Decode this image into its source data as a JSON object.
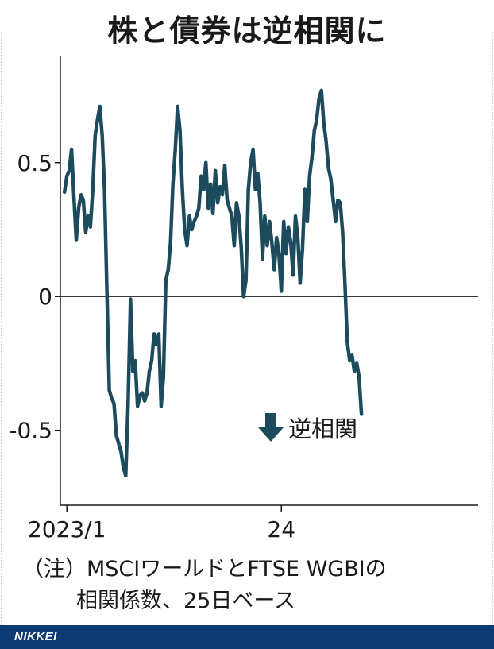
{
  "title": "株と債券は逆相関に",
  "note_line1": "（注）MSCIワールドとFTSE WGBIの",
  "note_line2": "相関係数、25日ベース",
  "logo": "NIKKEI",
  "colors": {
    "line": "#1d4b5e",
    "footer": "#0d3a72",
    "axis": "#1a1a1a"
  },
  "chart_data": {
    "type": "line",
    "ylim": [
      -0.78,
      0.9
    ],
    "y_ticks": [
      {
        "value": 0.5,
        "label": "0.5"
      },
      {
        "value": 0,
        "label": "0"
      },
      {
        "value": -0.5,
        "label": "-0.5"
      }
    ],
    "x_ticks": [
      {
        "date": "2023-01-02",
        "label": "2023/1"
      },
      {
        "date": "2024-01-01",
        "label": "24"
      }
    ],
    "x_range": [
      "2022-12-22",
      "2024-11-30"
    ],
    "annotation": "逆相関",
    "series": [
      {
        "values": [
          [
            "2022-12-29",
            0.39
          ],
          [
            "2023-01-02",
            0.45
          ],
          [
            "2023-01-06",
            0.47
          ],
          [
            "2023-01-10",
            0.55
          ],
          [
            "2023-01-14",
            0.37
          ],
          [
            "2023-01-18",
            0.21
          ],
          [
            "2023-01-22",
            0.33
          ],
          [
            "2023-01-26",
            0.38
          ],
          [
            "2023-01-30",
            0.36
          ],
          [
            "2023-02-03",
            0.24
          ],
          [
            "2023-02-07",
            0.3
          ],
          [
            "2023-02-11",
            0.26
          ],
          [
            "2023-02-15",
            0.4
          ],
          [
            "2023-02-19",
            0.6
          ],
          [
            "2023-02-23",
            0.66
          ],
          [
            "2023-02-27",
            0.71
          ],
          [
            "2023-03-03",
            0.6
          ],
          [
            "2023-03-07",
            0.4
          ],
          [
            "2023-03-11",
            0.02
          ],
          [
            "2023-03-15",
            -0.35
          ],
          [
            "2023-03-19",
            -0.38
          ],
          [
            "2023-03-23",
            -0.4
          ],
          [
            "2023-03-27",
            -0.52
          ],
          [
            "2023-03-31",
            -0.55
          ],
          [
            "2023-04-04",
            -0.58
          ],
          [
            "2023-04-08",
            -0.64
          ],
          [
            "2023-04-12",
            -0.67
          ],
          [
            "2023-04-16",
            -0.4
          ],
          [
            "2023-04-20",
            -0.01
          ],
          [
            "2023-04-24",
            -0.28
          ],
          [
            "2023-04-28",
            -0.24
          ],
          [
            "2023-05-02",
            -0.41
          ],
          [
            "2023-05-06",
            -0.37
          ],
          [
            "2023-05-10",
            -0.36
          ],
          [
            "2023-05-14",
            -0.39
          ],
          [
            "2023-05-18",
            -0.36
          ],
          [
            "2023-05-22",
            -0.28
          ],
          [
            "2023-05-26",
            -0.24
          ],
          [
            "2023-05-30",
            -0.14
          ],
          [
            "2023-06-03",
            -0.18
          ],
          [
            "2023-06-07",
            -0.14
          ],
          [
            "2023-06-11",
            -0.41
          ],
          [
            "2023-06-15",
            -0.3
          ],
          [
            "2023-06-19",
            0.06
          ],
          [
            "2023-06-23",
            0.1
          ],
          [
            "2023-06-27",
            0.2
          ],
          [
            "2023-07-01",
            0.42
          ],
          [
            "2023-07-05",
            0.55
          ],
          [
            "2023-07-09",
            0.71
          ],
          [
            "2023-07-13",
            0.62
          ],
          [
            "2023-07-17",
            0.4
          ],
          [
            "2023-07-21",
            0.25
          ],
          [
            "2023-07-25",
            0.19
          ],
          [
            "2023-07-29",
            0.3
          ],
          [
            "2023-08-02",
            0.25
          ],
          [
            "2023-08-06",
            0.28
          ],
          [
            "2023-08-10",
            0.3
          ],
          [
            "2023-08-14",
            0.33
          ],
          [
            "2023-08-18",
            0.45
          ],
          [
            "2023-08-22",
            0.4
          ],
          [
            "2023-08-26",
            0.5
          ],
          [
            "2023-08-30",
            0.33
          ],
          [
            "2023-09-03",
            0.42
          ],
          [
            "2023-09-07",
            0.31
          ],
          [
            "2023-09-11",
            0.47
          ],
          [
            "2023-09-15",
            0.35
          ],
          [
            "2023-09-19",
            0.41
          ],
          [
            "2023-09-23",
            0.38
          ],
          [
            "2023-09-27",
            0.49
          ],
          [
            "2023-10-01",
            0.36
          ],
          [
            "2023-10-05",
            0.33
          ],
          [
            "2023-10-09",
            0.3
          ],
          [
            "2023-10-13",
            0.19
          ],
          [
            "2023-10-17",
            0.35
          ],
          [
            "2023-10-21",
            0.3
          ],
          [
            "2023-10-25",
            0.18
          ],
          [
            "2023-10-29",
            0.0
          ],
          [
            "2023-11-02",
            0.06
          ],
          [
            "2023-11-06",
            0.4
          ],
          [
            "2023-11-10",
            0.5
          ],
          [
            "2023-11-14",
            0.55
          ],
          [
            "2023-11-18",
            0.4
          ],
          [
            "2023-11-22",
            0.46
          ],
          [
            "2023-11-26",
            0.35
          ],
          [
            "2023-11-30",
            0.14
          ],
          [
            "2023-12-04",
            0.3
          ],
          [
            "2023-12-08",
            0.19
          ],
          [
            "2023-12-12",
            0.28
          ],
          [
            "2023-12-16",
            0.2
          ],
          [
            "2023-12-20",
            0.1
          ],
          [
            "2023-12-24",
            0.22
          ],
          [
            "2023-12-28",
            0.16
          ],
          [
            "2024-01-01",
            0.02
          ],
          [
            "2024-01-05",
            0.28
          ],
          [
            "2024-01-09",
            0.16
          ],
          [
            "2024-01-13",
            0.26
          ],
          [
            "2024-01-17",
            0.2
          ],
          [
            "2024-01-21",
            0.08
          ],
          [
            "2024-01-25",
            0.3
          ],
          [
            "2024-01-29",
            0.22
          ],
          [
            "2024-02-02",
            0.05
          ],
          [
            "2024-02-06",
            0.18
          ],
          [
            "2024-02-10",
            0.4
          ],
          [
            "2024-02-14",
            0.28
          ],
          [
            "2024-02-18",
            0.45
          ],
          [
            "2024-02-22",
            0.52
          ],
          [
            "2024-02-26",
            0.62
          ],
          [
            "2024-03-01",
            0.66
          ],
          [
            "2024-03-05",
            0.74
          ],
          [
            "2024-03-09",
            0.77
          ],
          [
            "2024-03-13",
            0.65
          ],
          [
            "2024-03-17",
            0.58
          ],
          [
            "2024-03-21",
            0.48
          ],
          [
            "2024-03-25",
            0.44
          ],
          [
            "2024-03-29",
            0.36
          ],
          [
            "2024-04-02",
            0.28
          ],
          [
            "2024-04-06",
            0.36
          ],
          [
            "2024-04-10",
            0.35
          ],
          [
            "2024-04-14",
            0.24
          ],
          [
            "2024-04-18",
            0.05
          ],
          [
            "2024-04-22",
            -0.17
          ],
          [
            "2024-04-26",
            -0.24
          ],
          [
            "2024-04-30",
            -0.22
          ],
          [
            "2024-05-04",
            -0.28
          ],
          [
            "2024-05-08",
            -0.25
          ],
          [
            "2024-05-12",
            -0.3
          ],
          [
            "2024-05-16",
            -0.44
          ]
        ]
      }
    ]
  }
}
